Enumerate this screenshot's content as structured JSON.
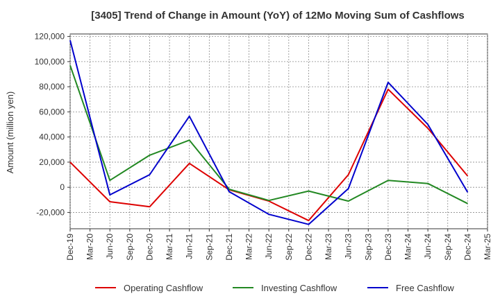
{
  "chart_data": {
    "type": "line",
    "title": "[3405]  Trend of Change in Amount (YoY) of 12Mo Moving Sum of Cashflows",
    "xlabel": "",
    "ylabel": "Amount (million yen)",
    "ylim": [
      -33000,
      122000
    ],
    "yticks": [
      -20000,
      0,
      20000,
      40000,
      60000,
      80000,
      100000,
      120000
    ],
    "ytick_labels": [
      "-20,000",
      "0",
      "20,000",
      "40,000",
      "60,000",
      "80,000",
      "100,000",
      "120,000"
    ],
    "categories": [
      "Dec-19",
      "Mar-20",
      "Jun-20",
      "Sep-20",
      "Dec-20",
      "Mar-21",
      "Jun-21",
      "Sep-21",
      "Dec-21",
      "Mar-22",
      "Jun-22",
      "Sep-22",
      "Dec-22",
      "Mar-23",
      "Jun-23",
      "Sep-23",
      "Dec-23",
      "Mar-24",
      "Jun-24",
      "Sep-24",
      "Dec-24",
      "Mar-25"
    ],
    "grid": true,
    "legend_position": "bottom",
    "series": [
      {
        "name": "Operating Cashflow",
        "color": "#dd0000",
        "values": [
          20000,
          null,
          -11500,
          null,
          -15500,
          null,
          19000,
          null,
          -2000,
          null,
          -11000,
          null,
          -26500,
          null,
          10000,
          null,
          78000,
          null,
          47000,
          null,
          9000,
          null
        ]
      },
      {
        "name": "Investing Cashflow",
        "color": "#228822",
        "values": [
          97000,
          null,
          5500,
          null,
          25500,
          null,
          37500,
          null,
          -1500,
          null,
          -10500,
          null,
          -3000,
          null,
          -11000,
          null,
          5500,
          null,
          3000,
          null,
          -13000,
          null
        ]
      },
      {
        "name": "Free Cashflow",
        "color": "#0000cc",
        "values": [
          117000,
          null,
          -6000,
          null,
          10000,
          null,
          56500,
          null,
          -3500,
          null,
          -21500,
          null,
          -29500,
          null,
          -1000,
          null,
          83500,
          null,
          50000,
          null,
          -4000,
          null
        ]
      }
    ]
  }
}
